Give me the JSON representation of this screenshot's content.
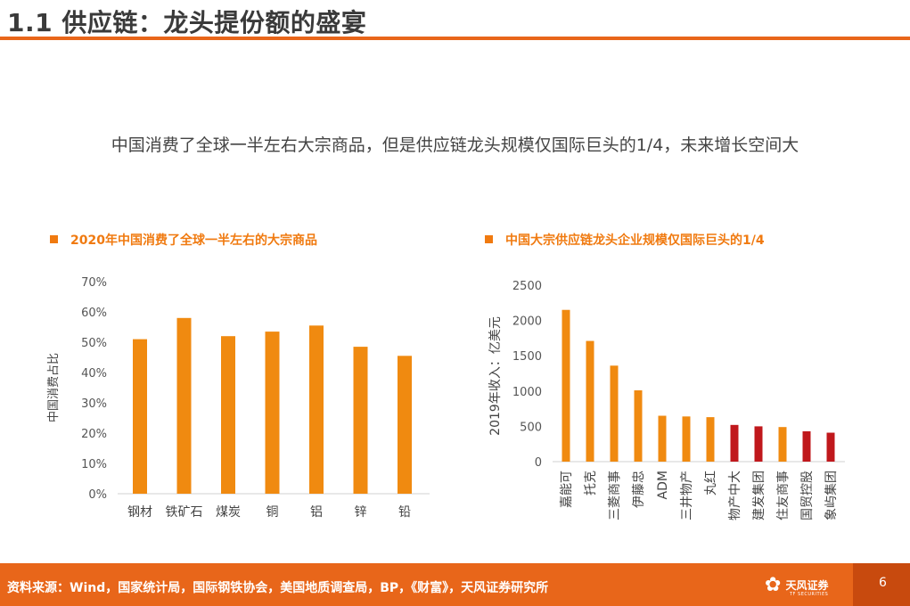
{
  "header": {
    "title": "1.1 供应链：龙头提份额的盛宴",
    "subtitle": "中国消费了全球一半左右大宗商品，但是供应链龙头规模仅国际巨头的1/4，未来增长空间大"
  },
  "chart_data": [
    {
      "type": "bar",
      "title": "2020年中国消费了全球一半左右的大宗商品",
      "ylabel": "中国消费占比",
      "ylim": [
        0,
        70
      ],
      "yticks": [
        "70%",
        "60%",
        "50%",
        "40%",
        "30%",
        "20%",
        "10%",
        "0%"
      ],
      "categories": [
        "钢材",
        "铁矿石",
        "煤炭",
        "铜",
        "铝",
        "锌",
        "铅"
      ],
      "values": [
        51,
        58,
        52,
        53.5,
        55.5,
        48.5,
        45.5
      ],
      "color": "#f08a10"
    },
    {
      "type": "bar",
      "title": "中国大宗供应链龙头企业规模仅国际巨头的1/4",
      "ylabel": "2019年收入：亿美元",
      "ylim": [
        0,
        2500
      ],
      "yticks": [
        "2500",
        "2000",
        "1500",
        "1000",
        "500",
        "0"
      ],
      "categories": [
        "嘉能可",
        "托克",
        "三菱商事",
        "伊藤忠",
        "ADM",
        "三井物产",
        "丸红",
        "物产中大",
        "建发集团",
        "住友商事",
        "国贸控股",
        "象屿集团"
      ],
      "values": [
        2150,
        1710,
        1360,
        1010,
        650,
        640,
        630,
        520,
        500,
        490,
        430,
        410
      ],
      "colors": [
        "#f08a10",
        "#f08a10",
        "#f08a10",
        "#f08a10",
        "#f08a10",
        "#f08a10",
        "#f08a10",
        "#c0181c",
        "#c0181c",
        "#f08a10",
        "#c0181c",
        "#c0181c"
      ]
    }
  ],
  "footer": {
    "source": "资料来源：Wind，国家统计局，国际钢铁协会，美国地质调查局，BP，《财富》，天风证券研究所",
    "logo_text": "天风证券",
    "logo_sub": "TF SECURITIES",
    "page": "6"
  }
}
